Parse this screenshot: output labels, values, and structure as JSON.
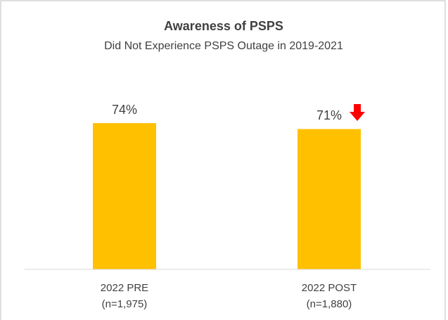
{
  "chart_data": {
    "type": "bar",
    "title": "Awareness of PSPS",
    "subtitle": "Did Not Experience PSPS Outage in 2019-2021",
    "categories": [
      [
        "2022 PRE",
        "(n=1,975)"
      ],
      [
        "2022 POST",
        "(n=1,880)"
      ]
    ],
    "values": [
      74,
      71
    ],
    "value_labels": [
      "74%",
      "71%"
    ],
    "color": "#ffc000",
    "ylim": [
      0,
      100
    ]
  }
}
